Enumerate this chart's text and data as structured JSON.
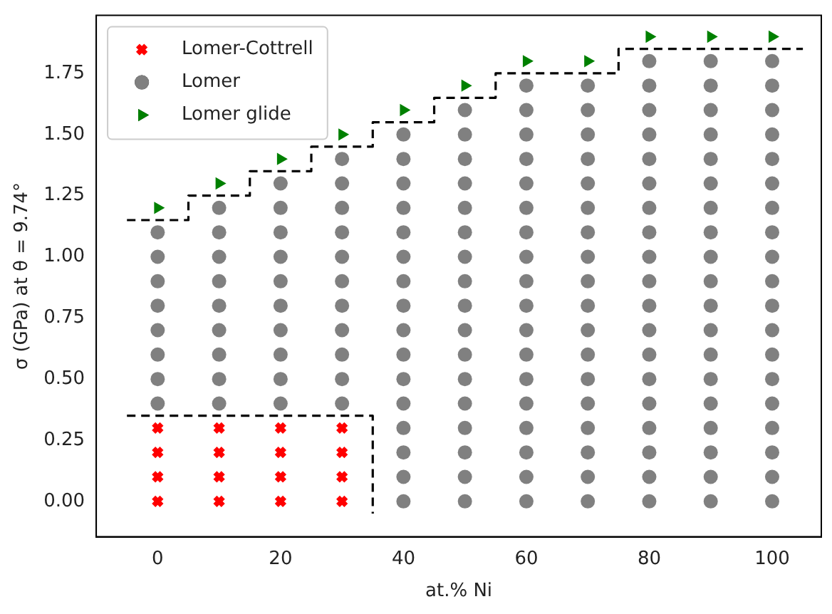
{
  "chart_data": {
    "type": "scatter",
    "xlabel": "at.% Ni",
    "ylabel": "σ (GPa) at θ = 9.74°",
    "xlim": [
      -10,
      108
    ],
    "xticks": [
      0,
      20,
      40,
      60,
      80,
      100
    ],
    "ylim": [
      -0.145,
      1.987
    ],
    "yticks": [
      {
        "value": 0,
        "label": "0.00"
      },
      {
        "value": 0.25,
        "label": "0.25"
      },
      {
        "value": 0.5,
        "label": "0.50"
      },
      {
        "value": 0.75,
        "label": "0.75"
      },
      {
        "value": 1,
        "label": "1.00"
      },
      {
        "value": 1.25,
        "label": "1.25"
      },
      {
        "value": 1.5,
        "label": "1.50"
      },
      {
        "value": 1.75,
        "label": "1.75"
      }
    ],
    "grid": false,
    "legend": "top left",
    "series": [
      {
        "name": "Lomer-Cottrell",
        "marker": "cross",
        "color": "#ff0000",
        "x": [
          0,
          0,
          0,
          0,
          10,
          10,
          10,
          10,
          20,
          20,
          20,
          20,
          30,
          30,
          30,
          30
        ],
        "values": [
          0,
          0.1,
          0.2,
          0.3,
          0,
          0.1,
          0.2,
          0.3,
          0,
          0.1,
          0.2,
          0.3,
          0,
          0.1,
          0.2,
          0.3
        ]
      },
      {
        "name": "Lomer",
        "marker": "circle",
        "color": "#808080",
        "x": [
          0,
          0,
          0,
          0,
          0,
          0,
          0,
          0,
          10,
          10,
          10,
          10,
          10,
          10,
          10,
          10,
          10,
          20,
          20,
          20,
          20,
          20,
          20,
          20,
          20,
          20,
          20,
          30,
          30,
          30,
          30,
          30,
          30,
          30,
          30,
          30,
          30,
          30,
          40,
          40,
          40,
          40,
          40,
          40,
          40,
          40,
          40,
          40,
          40,
          40,
          40,
          40,
          40,
          40,
          50,
          50,
          50,
          50,
          50,
          50,
          50,
          50,
          50,
          50,
          50,
          50,
          50,
          50,
          50,
          50,
          50,
          60,
          60,
          60,
          60,
          60,
          60,
          60,
          60,
          60,
          60,
          60,
          60,
          60,
          60,
          60,
          60,
          60,
          60,
          70,
          70,
          70,
          70,
          70,
          70,
          70,
          70,
          70,
          70,
          70,
          70,
          70,
          70,
          70,
          70,
          70,
          70,
          80,
          80,
          80,
          80,
          80,
          80,
          80,
          80,
          80,
          80,
          80,
          80,
          80,
          80,
          80,
          80,
          80,
          80,
          80,
          90,
          90,
          90,
          90,
          90,
          90,
          90,
          90,
          90,
          90,
          90,
          90,
          90,
          90,
          90,
          90,
          90,
          90,
          90,
          100,
          100,
          100,
          100,
          100,
          100,
          100,
          100,
          100,
          100,
          100,
          100,
          100,
          100,
          100,
          100,
          100,
          100,
          100
        ],
        "values": [
          0.4,
          0.5,
          0.6,
          0.7,
          0.8,
          0.9,
          1.0,
          1.1,
          0.4,
          0.5,
          0.6,
          0.7,
          0.8,
          0.9,
          1.0,
          1.1,
          1.2,
          0.4,
          0.5,
          0.6,
          0.7,
          0.8,
          0.9,
          1.0,
          1.1,
          1.2,
          1.3,
          0.4,
          0.5,
          0.6,
          0.7,
          0.8,
          0.9,
          1.0,
          1.1,
          1.2,
          1.3,
          1.4,
          0,
          0.1,
          0.2,
          0.3,
          0.4,
          0.5,
          0.6,
          0.7,
          0.8,
          0.9,
          1.0,
          1.1,
          1.2,
          1.3,
          1.4,
          1.5,
          0,
          0.1,
          0.2,
          0.3,
          0.4,
          0.5,
          0.6,
          0.7,
          0.8,
          0.9,
          1.0,
          1.1,
          1.2,
          1.3,
          1.4,
          1.5,
          1.6,
          0,
          0.1,
          0.2,
          0.3,
          0.4,
          0.5,
          0.6,
          0.7,
          0.8,
          0.9,
          1.0,
          1.1,
          1.2,
          1.3,
          1.4,
          1.5,
          1.6,
          1.7,
          0,
          0.1,
          0.2,
          0.3,
          0.4,
          0.5,
          0.6,
          0.7,
          0.8,
          0.9,
          1.0,
          1.1,
          1.2,
          1.3,
          1.4,
          1.5,
          1.6,
          1.7,
          0,
          0.1,
          0.2,
          0.3,
          0.4,
          0.5,
          0.6,
          0.7,
          0.8,
          0.9,
          1.0,
          1.1,
          1.2,
          1.3,
          1.4,
          1.5,
          1.6,
          1.7,
          1.8,
          0,
          0.1,
          0.2,
          0.3,
          0.4,
          0.5,
          0.6,
          0.7,
          0.8,
          0.9,
          1.0,
          1.1,
          1.2,
          1.3,
          1.4,
          1.5,
          1.6,
          1.7,
          1.8,
          0,
          0.1,
          0.2,
          0.3,
          0.4,
          0.5,
          0.6,
          0.7,
          0.8,
          0.9,
          1.0,
          1.1,
          1.2,
          1.3,
          1.4,
          1.5,
          1.6,
          1.7,
          1.8
        ]
      },
      {
        "name": "Lomer glide",
        "marker": "triangle",
        "color": "#008000",
        "x": [
          0,
          10,
          20,
          30,
          40,
          50,
          60,
          70,
          80,
          90,
          100
        ],
        "values": [
          1.2,
          1.3,
          1.4,
          1.5,
          1.6,
          1.7,
          1.8,
          1.8,
          1.9,
          1.9,
          1.9
        ]
      },
      {
        "type": "line",
        "line_style": "dashed",
        "marker": "none",
        "color": "#000000",
        "x": [
          -5,
          5,
          5,
          15,
          15,
          25,
          25,
          35,
          35,
          45,
          45,
          55,
          55,
          75,
          75,
          105
        ],
        "values": [
          1.15,
          1.15,
          1.25,
          1.25,
          1.35,
          1.35,
          1.45,
          1.45,
          1.55,
          1.55,
          1.65,
          1.65,
          1.75,
          1.75,
          1.85,
          1.85
        ]
      },
      {
        "type": "line",
        "line_style": "dashed",
        "marker": "none",
        "color": "#000000",
        "x": [
          -5,
          35,
          35
        ],
        "values": [
          0.35,
          0.35,
          -0.05
        ]
      }
    ]
  }
}
